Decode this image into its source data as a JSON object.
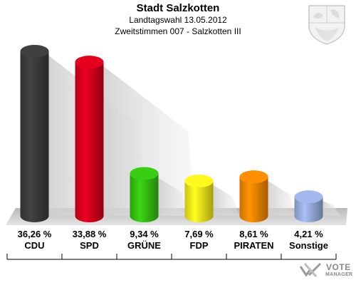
{
  "header": {
    "title": "Stadt Salzkotten",
    "subtitle": "Landtagswahl 13.05.2012",
    "district": "Zweitstimmen 007 - Salzkotten III"
  },
  "chart_data": {
    "type": "bar",
    "categories": [
      "CDU",
      "SPD",
      "GRÜNE",
      "FDP",
      "PIRATEN",
      "Sonstige"
    ],
    "values": [
      36.26,
      33.88,
      9.34,
      7.69,
      8.61,
      4.21
    ],
    "value_labels": [
      "36,26 %",
      "33,88 %",
      "9,34 %",
      "7,69 %",
      "8,61 %",
      "4,21 %"
    ],
    "colors": [
      "#3a3a3a",
      "#d0001c",
      "#33bb11",
      "#f2e21a",
      "#f08200",
      "#94a8d8"
    ],
    "ylim": [
      0,
      36.26
    ],
    "grid": false,
    "legend": "none"
  },
  "branding": {
    "vote": "VOTE",
    "manager": "MANAGER"
  }
}
